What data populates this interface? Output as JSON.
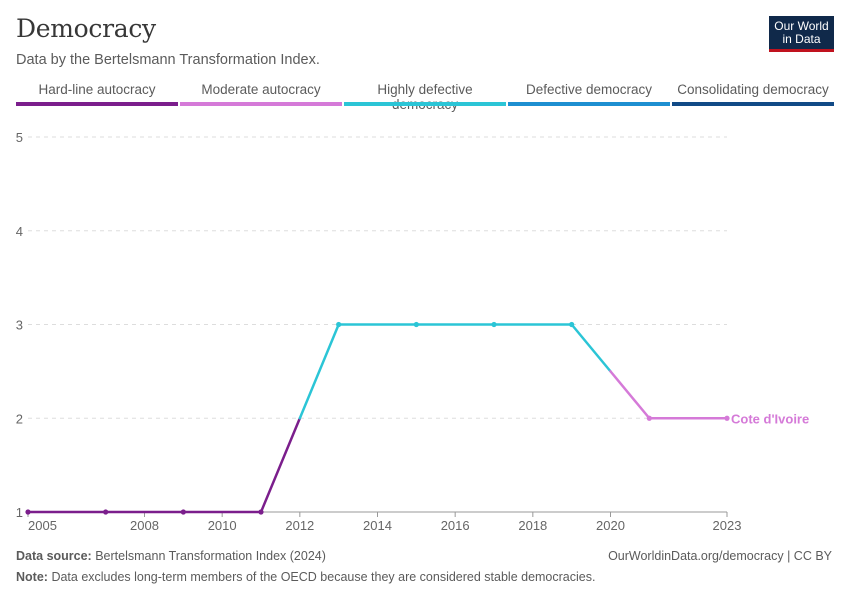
{
  "header": {
    "title": "Democracy",
    "subtitle": "Data by the Bertelsmann Transformation Index.",
    "logo_line1": "Our World",
    "logo_line2": "in Data"
  },
  "legend": [
    {
      "label": "Hard-line autocracy",
      "color": "#7b1e8c"
    },
    {
      "label": "Moderate autocracy",
      "color": "#d57ad8"
    },
    {
      "label": "Highly defective democracy",
      "color": "#2bc5d6"
    },
    {
      "label": "Defective democracy",
      "color": "#1d8fd1"
    },
    {
      "label": "Consolidating democracy",
      "color": "#114a86"
    }
  ],
  "chart_data": {
    "type": "line",
    "title": "Democracy",
    "subtitle": "Data by the Bertelsmann Transformation Index.",
    "series": [
      {
        "name": "Cote d'Ivoire",
        "x": [
          2005,
          2007,
          2009,
          2011,
          2013,
          2015,
          2017,
          2019,
          2021,
          2023
        ],
        "values": [
          1,
          1,
          1,
          1,
          3,
          3,
          3,
          3,
          2,
          2
        ]
      }
    ],
    "xlim": [
      2005,
      2023
    ],
    "ylim": [
      1,
      5
    ],
    "x_ticks": [
      "2005",
      "2008",
      "2010",
      "2012",
      "2014",
      "2016",
      "2018",
      "2020",
      "2023"
    ],
    "y_ticks": [
      "1",
      "2",
      "3",
      "4",
      "5"
    ],
    "grid": "horizontal dashed",
    "category_colors": {
      "1": "#7b1e8c",
      "2": "#d57ad8",
      "3": "#2bc5d6",
      "4": "#1d8fd1",
      "5": "#114a86"
    }
  },
  "footer": {
    "source_label": "Data source:",
    "source_text": "Bertelsmann Transformation Index (2024)",
    "credit": "OurWorldinData.org/democracy | CC BY",
    "note_label": "Note:",
    "note_text": "Data excludes long-term members of the OECD because they are considered stable democracies."
  }
}
